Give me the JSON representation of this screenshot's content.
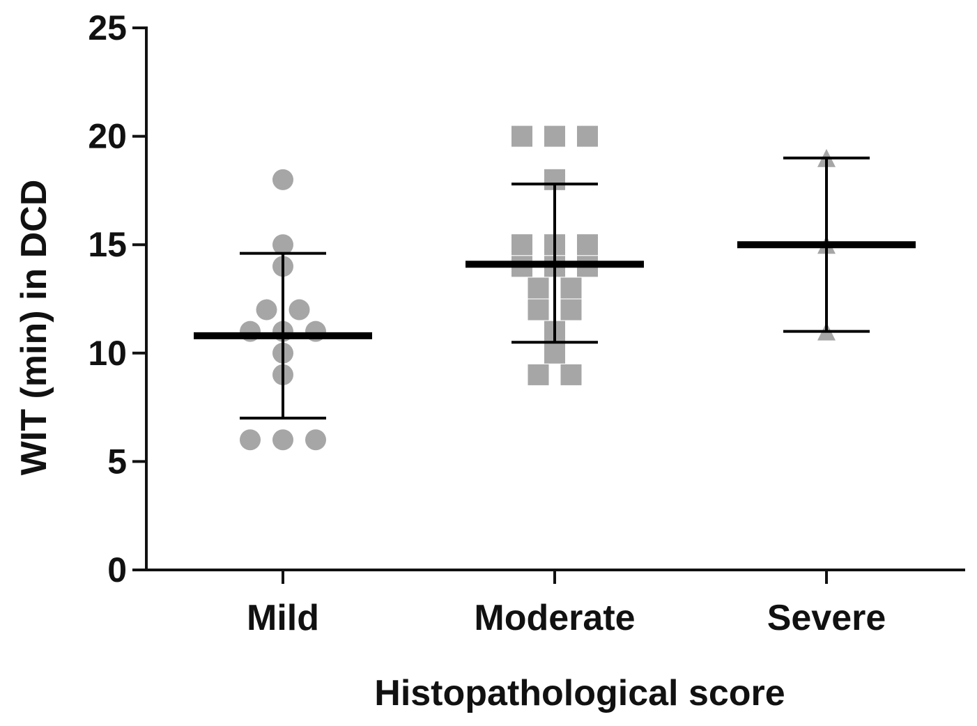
{
  "chart_data": {
    "type": "scatter",
    "xlabel": "Histopathological score",
    "ylabel": "WIT (min) in DCD",
    "ylim": [
      0,
      25
    ],
    "yticks": [
      0,
      5,
      10,
      15,
      20,
      25
    ],
    "categories": [
      "Mild",
      "Moderate",
      "Severe"
    ],
    "grid": false,
    "series": [
      {
        "category": "Mild",
        "marker": "circle",
        "color": "#a6a6a6",
        "points": [
          18,
          15,
          14,
          12,
          12,
          11,
          11,
          11,
          10,
          9,
          6,
          6,
          6
        ],
        "mean": 10.8,
        "sd_upper": 14.6,
        "sd_lower": 7.0
      },
      {
        "category": "Moderate",
        "marker": "square",
        "color": "#a6a6a6",
        "points": [
          20,
          20,
          20,
          18,
          15,
          15,
          15,
          14,
          14,
          14,
          13,
          13,
          12,
          12,
          11,
          10,
          9,
          9
        ],
        "mean": 14.1,
        "sd_upper": 17.8,
        "sd_lower": 10.5
      },
      {
        "category": "Severe",
        "marker": "triangle",
        "color": "#a6a6a6",
        "points": [
          19,
          15,
          11
        ],
        "mean": 15.0,
        "sd_upper": 19.0,
        "sd_lower": 11.0
      }
    ]
  }
}
